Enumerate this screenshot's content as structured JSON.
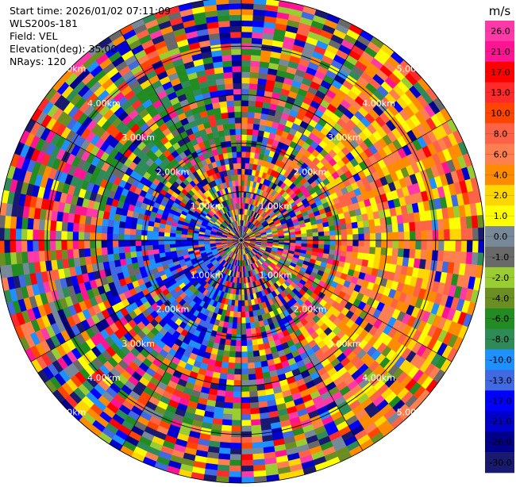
{
  "header": {
    "start_time": "Start time: 2026/01/02 07:11:09",
    "instrument": "WLS200s-181",
    "field": "Field: VEL",
    "elevation": "Elevation(deg): 35.00",
    "nrays": "NRays: 120"
  },
  "colorbar": {
    "unit": "m/s",
    "ticks": [
      "26.0",
      "21.0",
      "17.0",
      "13.0",
      "10.0",
      "8.0",
      "6.0",
      "4.0",
      "2.0",
      "1.0",
      "0.0",
      "-1.0",
      "-2.0",
      "-4.0",
      "-6.0",
      "-8.0",
      "-10.0",
      "-13.0",
      "-17.0",
      "-21.0",
      "-26.0",
      "-30.0"
    ],
    "colors": [
      "#ff3aa8",
      "#ff1493",
      "#ff0000",
      "#ff2a2a",
      "#ff4500",
      "#ff6347",
      "#ff7f50",
      "#ff8c00",
      "#ffd700",
      "#ffff00",
      "#778899",
      "#696969",
      "#9acd32",
      "#6b8e23",
      "#228b22",
      "#2e8b57",
      "#1e90ff",
      "#4169e1",
      "#0000ff",
      "#0000cd",
      "#00008b",
      "#191970"
    ]
  },
  "chart_data": {
    "type": "heatmap",
    "projection": "polar PPI",
    "title": "",
    "range_ring_labels": [
      "1.00km",
      "2.00km",
      "3.00km",
      "4.00km",
      "5.00km"
    ],
    "range_rings_km": [
      1,
      2,
      3,
      4,
      5
    ],
    "max_range_km": 5.0,
    "n_rays": 120,
    "elevation_deg": 35.0,
    "field": "VEL",
    "units": "m/s",
    "value_range": [
      -30.0,
      26.0
    ],
    "notes": "Noisy Doppler velocity field; coherent positive (orange/yellow, ~2 to 8 m/s) region to the east, coherent negative (blue, ~-10 to -17 m/s) region to the west/southwest, green (~-6 m/s) region to the north-west."
  }
}
